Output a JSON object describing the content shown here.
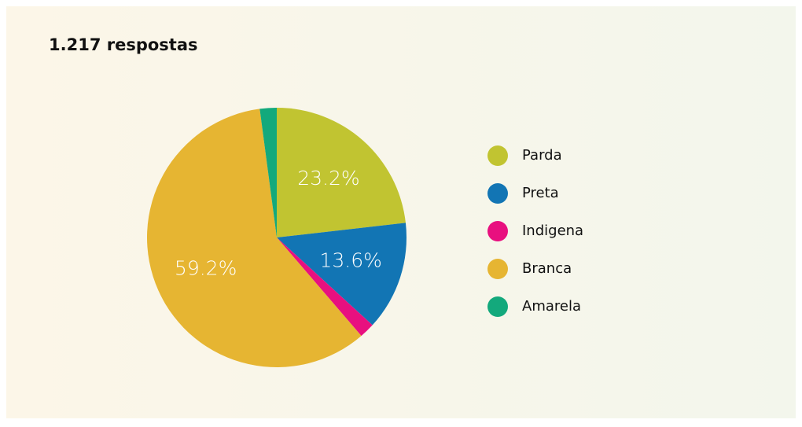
{
  "chart_data": {
    "type": "pie",
    "title": "1.217 respostas",
    "categories": [
      "Parda",
      "Preta",
      "Indigena",
      "Branca",
      "Amarela"
    ],
    "values": [
      23.2,
      13.6,
      1.9,
      59.2,
      2.1
    ],
    "value_labels": [
      "23.2%",
      "13.6%",
      null,
      "59.2%",
      null
    ],
    "colors": [
      "#c1c431",
      "#1275b4",
      "#e8107f",
      "#e6b532",
      "#13a97c"
    ],
    "legend": "right"
  }
}
